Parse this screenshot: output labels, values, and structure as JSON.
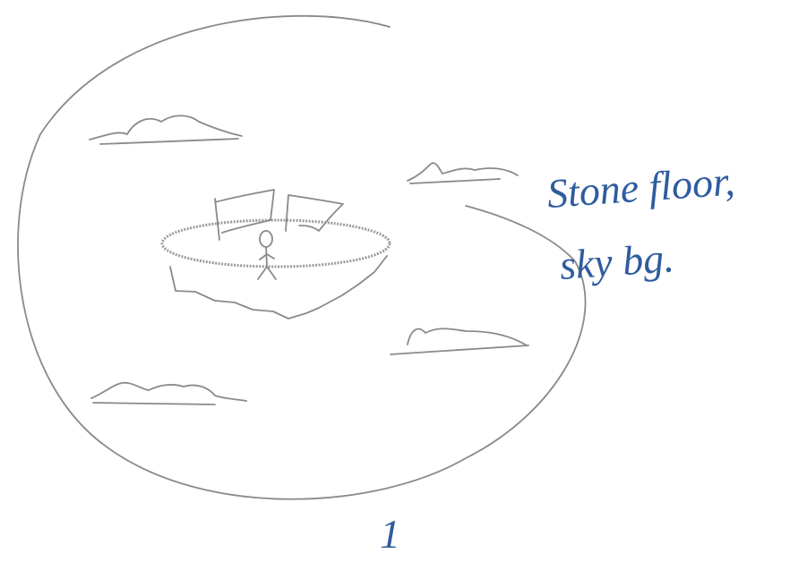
{
  "notes": {
    "lines": [
      "Stone floor,",
      "sky bg."
    ]
  },
  "page_number": "1"
}
